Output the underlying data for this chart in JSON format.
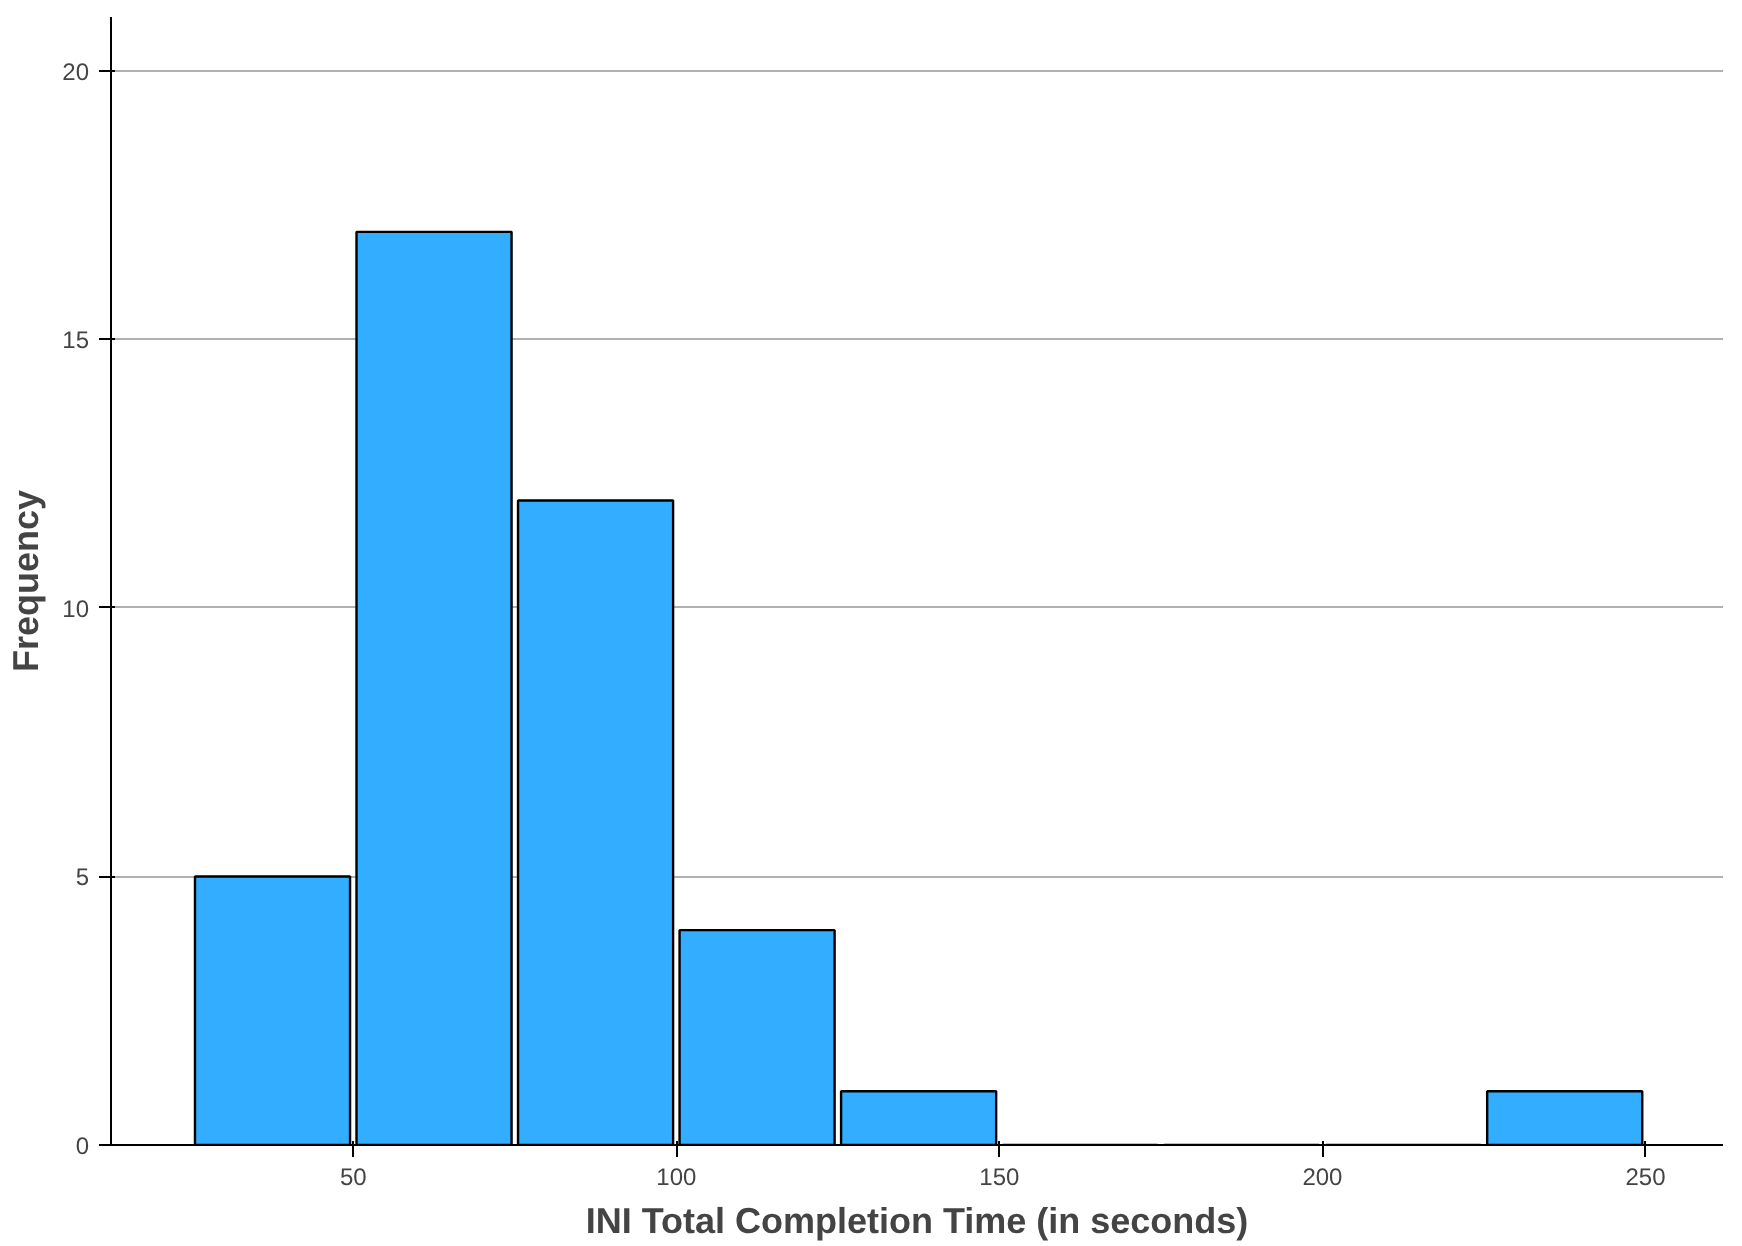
{
  "chart_data": {
    "type": "histogram",
    "xlabel": "INI Total Completion Time (in seconds)",
    "ylabel": "Frequency",
    "bins": [
      25,
      50,
      75,
      100,
      125,
      150,
      175,
      200,
      225,
      250
    ],
    "values": [
      5,
      17,
      12,
      4,
      1,
      0,
      0,
      0,
      1
    ],
    "color": "#33adff",
    "xlim": [
      12.5,
      262
    ],
    "ylim": [
      0,
      21
    ],
    "xticks": [
      50,
      100,
      150,
      200,
      250
    ],
    "yticks": [
      0,
      5,
      10,
      15,
      20
    ],
    "grid": "y"
  }
}
